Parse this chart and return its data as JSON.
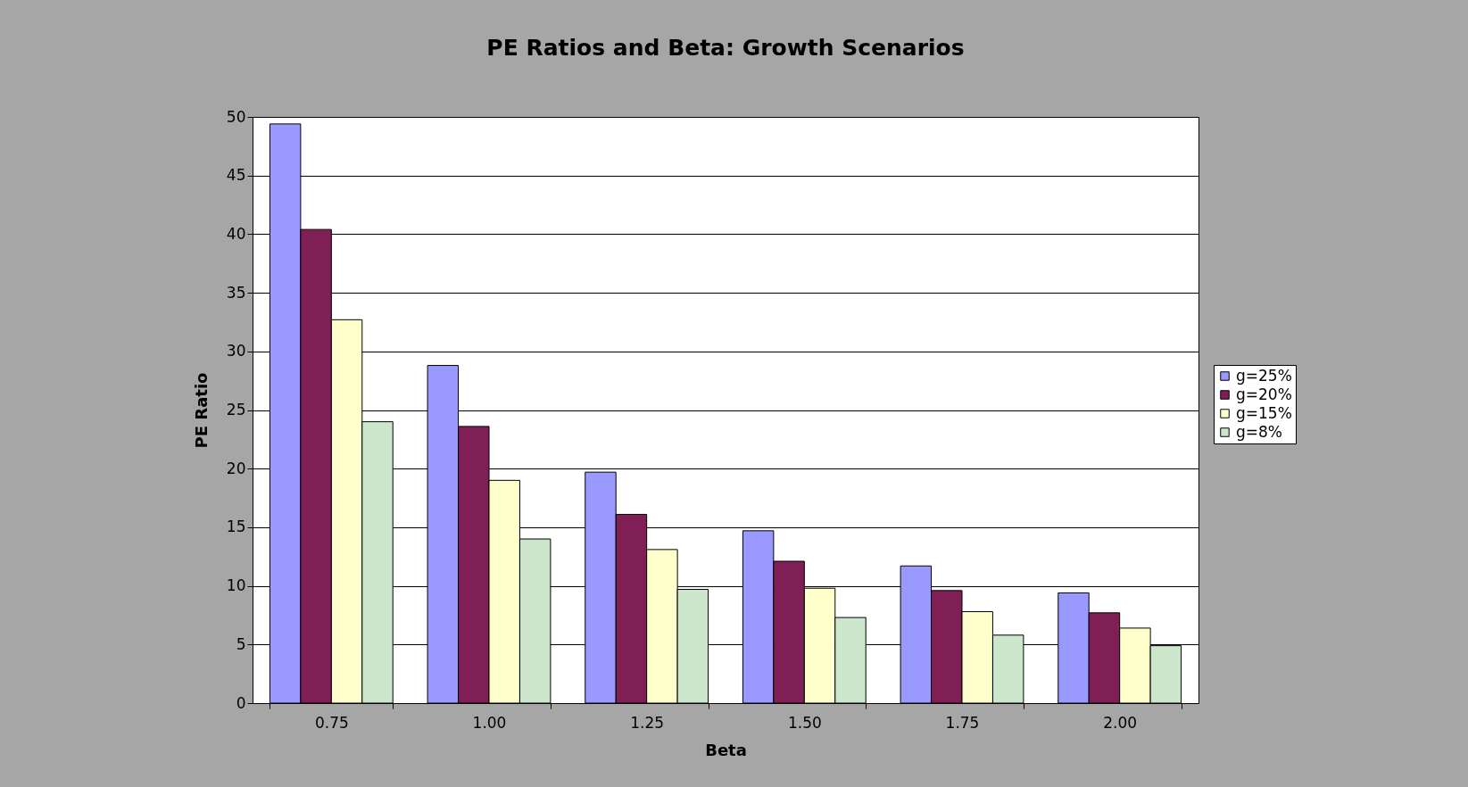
{
  "chart_data": {
    "type": "bar",
    "title": "PE  Ratios  and  Beta:  Growth  Scenarios",
    "xlabel": "Beta",
    "ylabel": "PE  Ratio",
    "categories": [
      "0.75",
      "1.00",
      "1.25",
      "1.50",
      "1.75",
      "2.00"
    ],
    "series": [
      {
        "name": "g=25%",
        "color": "#9999ff",
        "values": [
          49.4,
          28.8,
          19.7,
          14.7,
          11.7,
          9.4
        ]
      },
      {
        "name": "g=20%",
        "color": "#7f1f55",
        "values": [
          40.4,
          23.6,
          16.1,
          12.1,
          9.6,
          7.7
        ]
      },
      {
        "name": "g=15%",
        "color": "#ffffcc",
        "values": [
          32.7,
          19.0,
          13.1,
          9.8,
          7.8,
          6.4
        ]
      },
      {
        "name": "g=8%",
        "color": "#cce6cc",
        "values": [
          24.0,
          14.0,
          9.7,
          7.3,
          5.8,
          4.9
        ]
      }
    ],
    "ylim": [
      0,
      50
    ],
    "yticks": [
      0,
      5,
      10,
      15,
      20,
      25,
      30,
      35,
      40,
      45,
      50
    ],
    "grid": "y",
    "legend": "right"
  }
}
